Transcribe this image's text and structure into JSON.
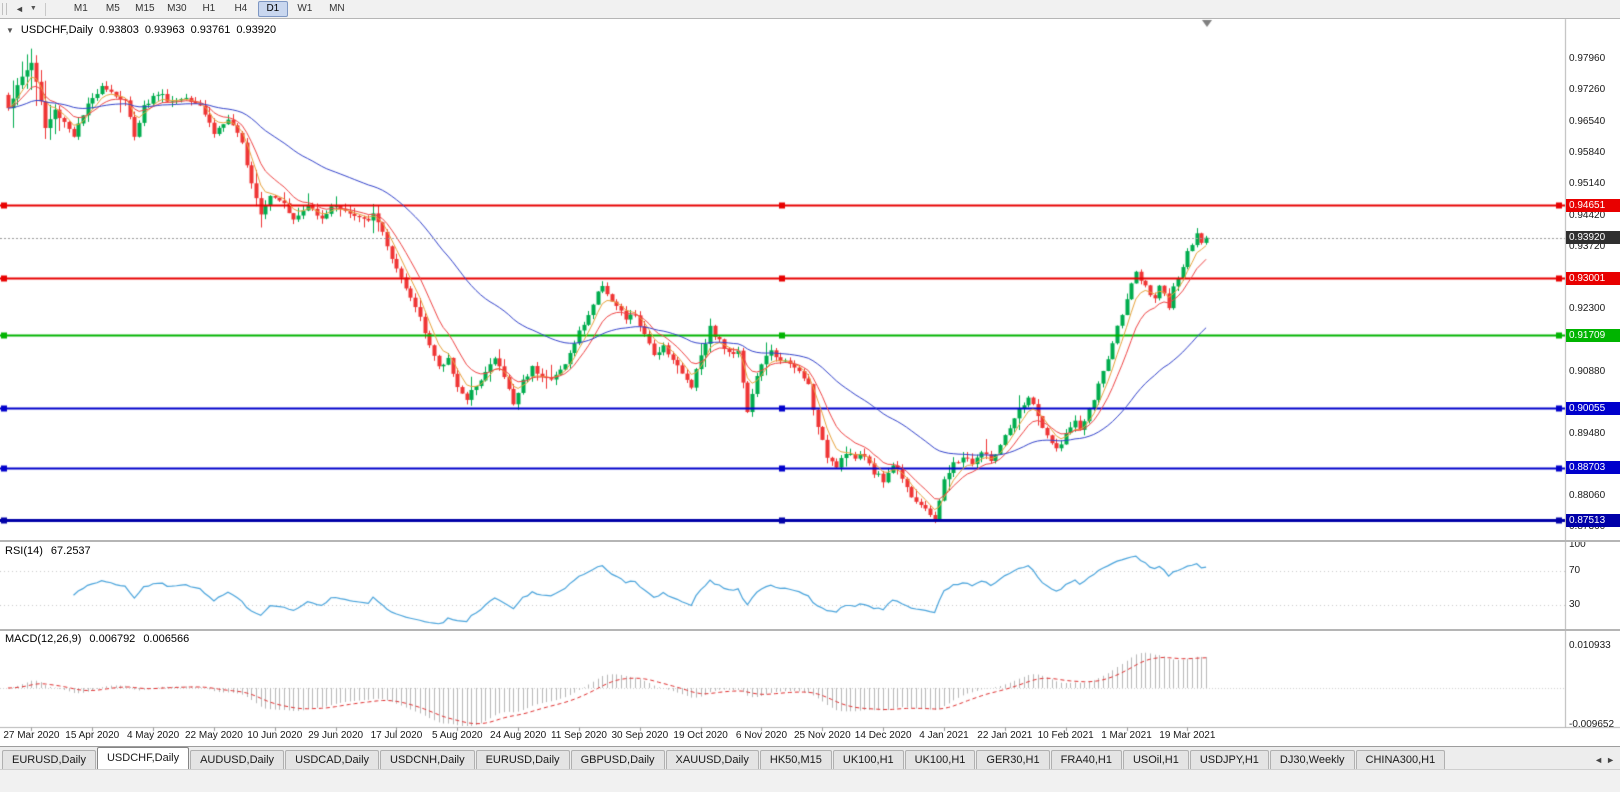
{
  "toolbar": {
    "icons": [
      {
        "name": "scroll-left-icon",
        "glyph": "◄"
      },
      {
        "name": "dropdown-icon",
        "glyph": "▼"
      }
    ],
    "periods": [
      {
        "label": "M1",
        "active": false
      },
      {
        "label": "M5",
        "active": false
      },
      {
        "label": "M15",
        "active": false
      },
      {
        "label": "M30",
        "active": false
      },
      {
        "label": "H1",
        "active": false
      },
      {
        "label": "H4",
        "active": false
      },
      {
        "label": "D1",
        "active": true
      },
      {
        "label": "W1",
        "active": false
      },
      {
        "label": "MN",
        "active": false
      }
    ]
  },
  "chart_header": {
    "collapse_icon": "▼",
    "symbol": "USDCHF,Daily",
    "open": "0.93803",
    "high": "0.93963",
    "low": "0.93761",
    "close": "0.93920"
  },
  "rsi_header": {
    "name": "RSI(14)",
    "value": "67.2537"
  },
  "macd_header": {
    "name": "MACD(12,26,9)",
    "value1": "0.006792",
    "value2": "0.006566"
  },
  "tabs": {
    "scroll_left": "◄",
    "scroll_right": "►",
    "items": [
      {
        "label": "EURUSD,Daily",
        "active": false
      },
      {
        "label": "USDCHF,Daily",
        "active": true
      },
      {
        "label": "AUDUSD,Daily",
        "active": false
      },
      {
        "label": "USDCAD,Daily",
        "active": false
      },
      {
        "label": "USDCNH,Daily",
        "active": false
      },
      {
        "label": "EURUSD,Daily",
        "active": false
      },
      {
        "label": "GBPUSD,Daily",
        "active": false
      },
      {
        "label": "XAUUSD,Daily",
        "active": false
      },
      {
        "label": "HK50,M15",
        "active": false
      },
      {
        "label": "UK100,H1",
        "active": false
      },
      {
        "label": "UK100,H1",
        "active": false
      },
      {
        "label": "GER30,H1",
        "active": false
      },
      {
        "label": "FRA40,H1",
        "active": false
      },
      {
        "label": "USOil,H1",
        "active": false
      },
      {
        "label": "USDJPY,H1",
        "active": false
      },
      {
        "label": "DJ30,Weekly",
        "active": false
      },
      {
        "label": "CHINA300,H1",
        "active": false
      }
    ]
  },
  "chart_data": {
    "type": "candlestick",
    "symbol": "USDCHF",
    "timeframe": "Daily",
    "last_bar": {
      "open": 0.93803,
      "high": 0.93963,
      "low": 0.93761,
      "close": 0.9392
    },
    "bar_count": 257,
    "bars_per_x_label": 13,
    "first_x_label_bar": 5,
    "x_labels": [
      "27 Mar 2020",
      "15 Apr 2020",
      "4 May 2020",
      "22 May 2020",
      "10 Jun 2020",
      "29 Jun 2020",
      "17 Jul 2020",
      "5 Aug 2020",
      "24 Aug 2020",
      "11 Sep 2020",
      "30 Sep 2020",
      "19 Oct 2020",
      "6 Nov 2020",
      "25 Nov 2020",
      "14 Dec 2020",
      "4 Jan 2021",
      "22 Jan 2021",
      "10 Feb 2021",
      "1 Mar 2021",
      "19 Mar 2021"
    ],
    "y_axis_labels": [
      "0.97960",
      "0.97260",
      "0.96540",
      "0.95840",
      "0.95140",
      "0.94420",
      "0.93720",
      "0.92300",
      "0.91600",
      "0.90880",
      "0.89480",
      "0.88060",
      "0.87360"
    ],
    "y_range": [
      0.8707,
      0.9874
    ],
    "candle_colors": {
      "up": "#00ad4e",
      "down": "#ef3535"
    },
    "moving_averages": [
      {
        "type": "EMA",
        "period": 5,
        "color": "#e8a33d"
      },
      {
        "type": "EMA",
        "period": 10,
        "color": "#f04545"
      },
      {
        "type": "EMA",
        "period": 40,
        "color": "#3343cc"
      }
    ],
    "horizontal_lines": [
      {
        "price": 0.94651,
        "label": "0.94651",
        "color": "#e80000",
        "width": 2
      },
      {
        "price": 0.93001,
        "label": "0.93001",
        "color": "#e80000",
        "width": 2
      },
      {
        "price": 0.91709,
        "label": "0.91709",
        "color": "#00b400",
        "width": 2
      },
      {
        "price": 0.90055,
        "label": "0.90055",
        "color": "#0000cc",
        "width": 2
      },
      {
        "price": 0.88703,
        "label": "0.88703",
        "color": "#0000cc",
        "width": 2
      },
      {
        "price": 0.87513,
        "label": "0.87513",
        "color": "#0000a8",
        "width": 3
      }
    ],
    "current_price_line": {
      "price": 0.9392,
      "label": "0.93920",
      "line_color": "#999999",
      "label_bg": "#2f2f2f"
    },
    "rsi": {
      "period": 14,
      "value": 67.2537,
      "color": "#4aa4dc",
      "levels": [
        70,
        30
      ],
      "axis_labels": [
        "100",
        "70",
        "30"
      ],
      "range": [
        0,
        100
      ]
    },
    "macd": {
      "fast": 12,
      "slow": 26,
      "signal": 9,
      "values": [
        0.006792,
        0.006566
      ],
      "hist_color": "#b8b8b8",
      "signal_color": "#e03030",
      "axis_labels": [
        "0.010933",
        "-0.009652"
      ]
    },
    "price_anchors": [
      [
        0,
        0.969
      ],
      [
        3,
        0.9755
      ],
      [
        5,
        0.979
      ],
      [
        7,
        0.97
      ],
      [
        8,
        0.964
      ],
      [
        10,
        0.968
      ],
      [
        12,
        0.9655
      ],
      [
        14,
        0.9625
      ],
      [
        17,
        0.969
      ],
      [
        20,
        0.974
      ],
      [
        23,
        0.9715
      ],
      [
        25,
        0.97
      ],
      [
        27,
        0.9625
      ],
      [
        29,
        0.969
      ],
      [
        32,
        0.972
      ],
      [
        35,
        0.97
      ],
      [
        38,
        0.9712
      ],
      [
        41,
        0.9695
      ],
      [
        44,
        0.963
      ],
      [
        47,
        0.966
      ],
      [
        50,
        0.9605
      ],
      [
        52,
        0.952
      ],
      [
        54,
        0.945
      ],
      [
        56,
        0.949
      ],
      [
        59,
        0.9475
      ],
      [
        61,
        0.943
      ],
      [
        64,
        0.9465
      ],
      [
        67,
        0.944
      ],
      [
        70,
        0.9468
      ],
      [
        73,
        0.9445
      ],
      [
        76,
        0.943
      ],
      [
        78,
        0.9442
      ],
      [
        80,
        0.9408
      ],
      [
        82,
        0.934
      ],
      [
        84,
        0.9295
      ],
      [
        86,
        0.9255
      ],
      [
        88,
        0.9215
      ],
      [
        90,
        0.915
      ],
      [
        92,
        0.9095
      ],
      [
        94,
        0.9118
      ],
      [
        96,
        0.9058
      ],
      [
        98,
        0.902
      ],
      [
        100,
        0.9062
      ],
      [
        102,
        0.9088
      ],
      [
        104,
        0.9118
      ],
      [
        106,
        0.9078
      ],
      [
        108,
        0.9015
      ],
      [
        110,
        0.9068
      ],
      [
        112,
        0.9098
      ],
      [
        114,
        0.9082
      ],
      [
        116,
        0.9068
      ],
      [
        118,
        0.9092
      ],
      [
        120,
        0.9128
      ],
      [
        122,
        0.9178
      ],
      [
        124,
        0.9218
      ],
      [
        127,
        0.9288
      ],
      [
        129,
        0.9248
      ],
      [
        132,
        0.9208
      ],
      [
        134,
        0.9218
      ],
      [
        136,
        0.9168
      ],
      [
        138,
        0.9128
      ],
      [
        140,
        0.9148
      ],
      [
        142,
        0.9118
      ],
      [
        144,
        0.9082
      ],
      [
        146,
        0.9058
      ],
      [
        148,
        0.9128
      ],
      [
        150,
        0.9188
      ],
      [
        152,
        0.9158
      ],
      [
        154,
        0.9128
      ],
      [
        156,
        0.914
      ],
      [
        158,
        0.8995
      ],
      [
        159,
        0.904
      ],
      [
        161,
        0.9108
      ],
      [
        163,
        0.9132
      ],
      [
        165,
        0.9118
      ],
      [
        167,
        0.9102
      ],
      [
        169,
        0.9088
      ],
      [
        171,
        0.9058
      ],
      [
        173,
        0.8958
      ],
      [
        175,
        0.8898
      ],
      [
        177,
        0.8878
      ],
      [
        179,
        0.8908
      ],
      [
        181,
        0.8892
      ],
      [
        183,
        0.8898
      ],
      [
        185,
        0.8862
      ],
      [
        187,
        0.8842
      ],
      [
        189,
        0.8878
      ],
      [
        191,
        0.8852
      ],
      [
        193,
        0.8808
      ],
      [
        196,
        0.8772
      ],
      [
        198,
        0.8757
      ],
      [
        200,
        0.884
      ],
      [
        202,
        0.8878
      ],
      [
        204,
        0.8895
      ],
      [
        206,
        0.8882
      ],
      [
        208,
        0.8905
      ],
      [
        210,
        0.8888
      ],
      [
        212,
        0.8918
      ],
      [
        214,
        0.8958
      ],
      [
        216,
        0.9
      ],
      [
        218,
        0.9032
      ],
      [
        220,
        0.8988
      ],
      [
        222,
        0.8938
      ],
      [
        224,
        0.8912
      ],
      [
        226,
        0.8948
      ],
      [
        228,
        0.8972
      ],
      [
        229,
        0.8958
      ],
      [
        231,
        0.8998
      ],
      [
        233,
        0.9058
      ],
      [
        235,
        0.9118
      ],
      [
        237,
        0.9188
      ],
      [
        239,
        0.9258
      ],
      [
        241,
        0.9308
      ],
      [
        243,
        0.9278
      ],
      [
        245,
        0.9248
      ],
      [
        246,
        0.9288
      ],
      [
        247,
        0.9268
      ],
      [
        248,
        0.9238
      ],
      [
        249,
        0.9282
      ],
      [
        250,
        0.9298
      ],
      [
        252,
        0.9355
      ],
      [
        254,
        0.9398
      ],
      [
        255,
        0.9385
      ],
      [
        256,
        0.9392
      ]
    ]
  }
}
